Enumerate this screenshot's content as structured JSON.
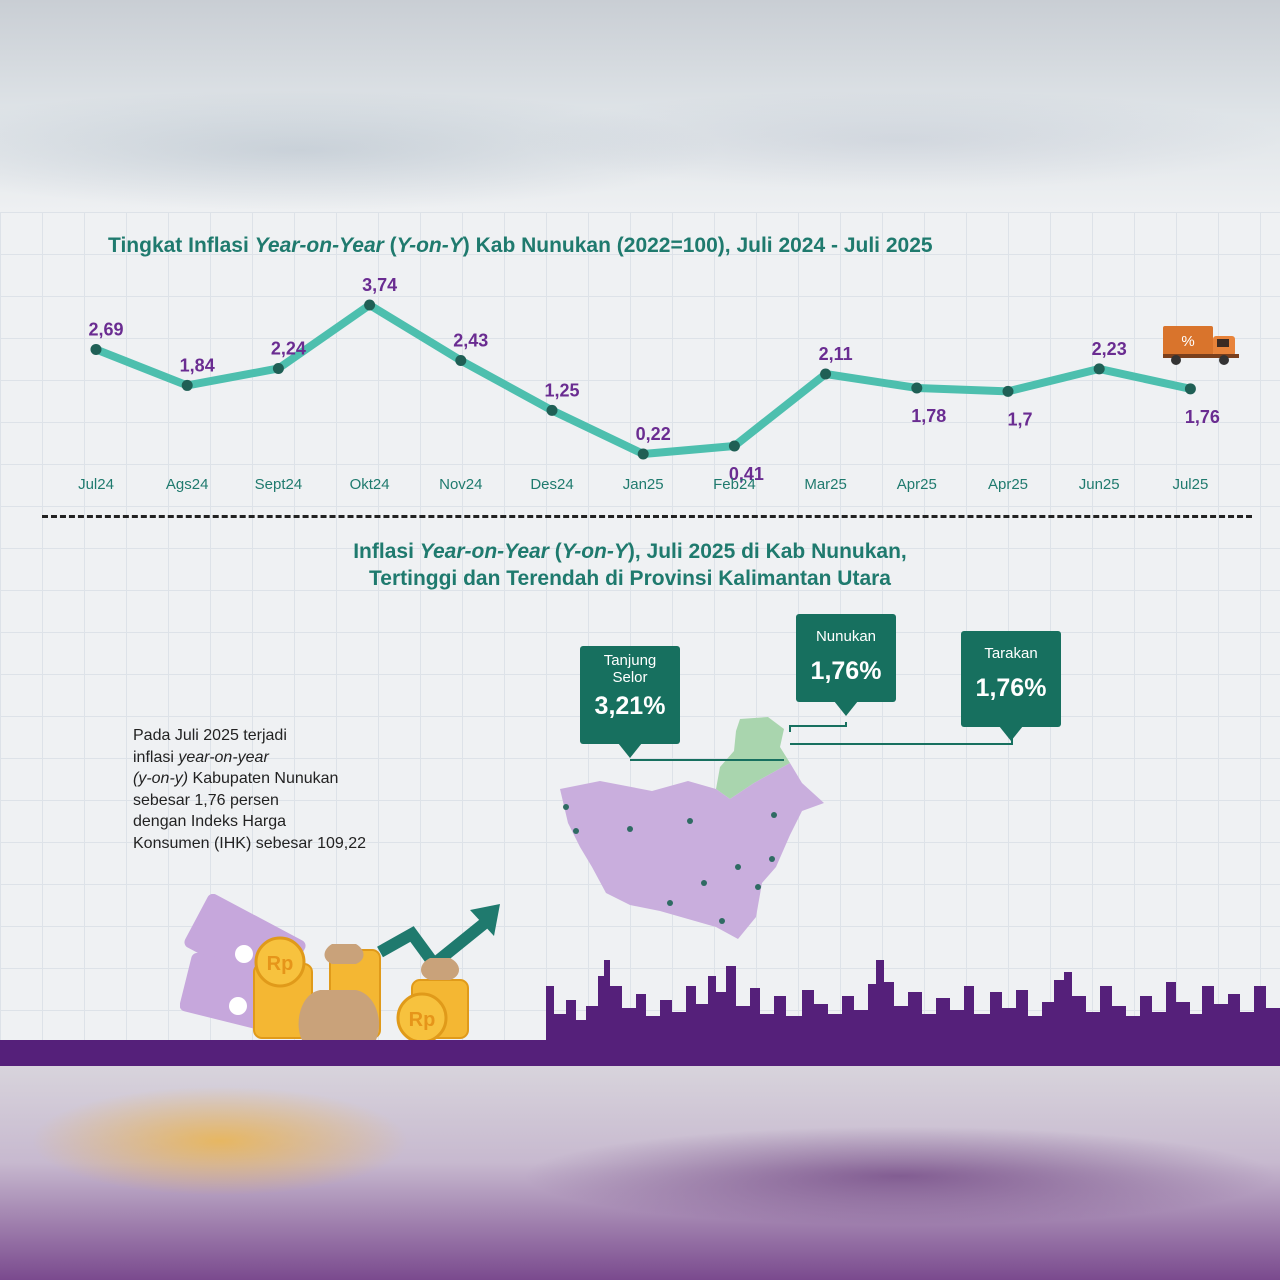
{
  "chart_data": {
    "type": "line",
    "title": "Tingkat Inflasi Year-on-Year (Y-on-Y) Kab Nunukan (2022=100), Juli 2024 - Juli 2025",
    "title_parts": [
      "Tingkat Inflasi ",
      "Year-on-Year",
      " (",
      "Y-on-Y",
      ") Kab Nunukan (2022=100), Juli 2024 - Juli 2025"
    ],
    "categories": [
      "Jul24",
      "Ags24",
      "Sept24",
      "Okt24",
      "Nov24",
      "Des24",
      "Jan25",
      "Feb24",
      "Mar25",
      "Apr25",
      "Apr25",
      "Jun25",
      "Jul25"
    ],
    "value_labels": [
      "2,69",
      "1,84",
      "2,24",
      "3,74",
      "2,43",
      "1,25",
      "0,22",
      "0,41",
      "2,11",
      "1,78",
      "1,7",
      "2,23",
      "1,76"
    ],
    "values": [
      2.69,
      1.84,
      2.24,
      3.74,
      2.43,
      1.25,
      0.22,
      0.41,
      2.11,
      1.78,
      1.7,
      2.23,
      1.76
    ],
    "label_position": [
      "above",
      "above",
      "above",
      "above",
      "above",
      "above",
      "above",
      "below",
      "above",
      "below",
      "below",
      "above",
      "below"
    ],
    "ylim": [
      0,
      4
    ],
    "xlabel": "",
    "ylabel": "",
    "grid": false,
    "colors": {
      "line": "#4dbfae",
      "point": "#1f5f55",
      "value_label": "#6a2c91",
      "tick": "#1f7a6e"
    }
  },
  "section2": {
    "title_line1_parts": [
      "Inflasi ",
      "Year-on-Year",
      " (",
      "Y-on-Y",
      "), Juli 2025 di Kab Nunukan,"
    ],
    "title_line2": "Tertinggi dan Terendah di Provinsi Kalimantan Utara"
  },
  "callouts": [
    {
      "name_line1": "Tanjung",
      "name_line2": "Selor",
      "value": "3,21%"
    },
    {
      "name_line1": "Nunukan",
      "name_line2": "",
      "value": "1,76%"
    },
    {
      "name_line1": "Tarakan",
      "name_line2": "",
      "value": "1,76%"
    }
  ],
  "description": {
    "line1": "Pada Juli 2025 terjadi",
    "line2_pre": "inflasi ",
    "line2_italic": "year-on-year",
    "line3_italic": "(y-on-y)",
    "line3_post": " Kabupaten Nunukan",
    "line4": "sebesar 1,76 persen",
    "line5": "dengan Indeks Harga",
    "line6": "Konsumen (IHK) sebesar 109,22"
  },
  "icons": {
    "truck": "truck-percent-icon",
    "coin_symbol": "Rp",
    "truck_symbol": "%"
  },
  "colors": {
    "teal_dark": "#17705f",
    "map_purple": "#c9aedd",
    "map_green": "#a9d5ae",
    "skyline": "#55207a",
    "coin": "#f4b733",
    "money_bill": "#c6a7dc"
  }
}
